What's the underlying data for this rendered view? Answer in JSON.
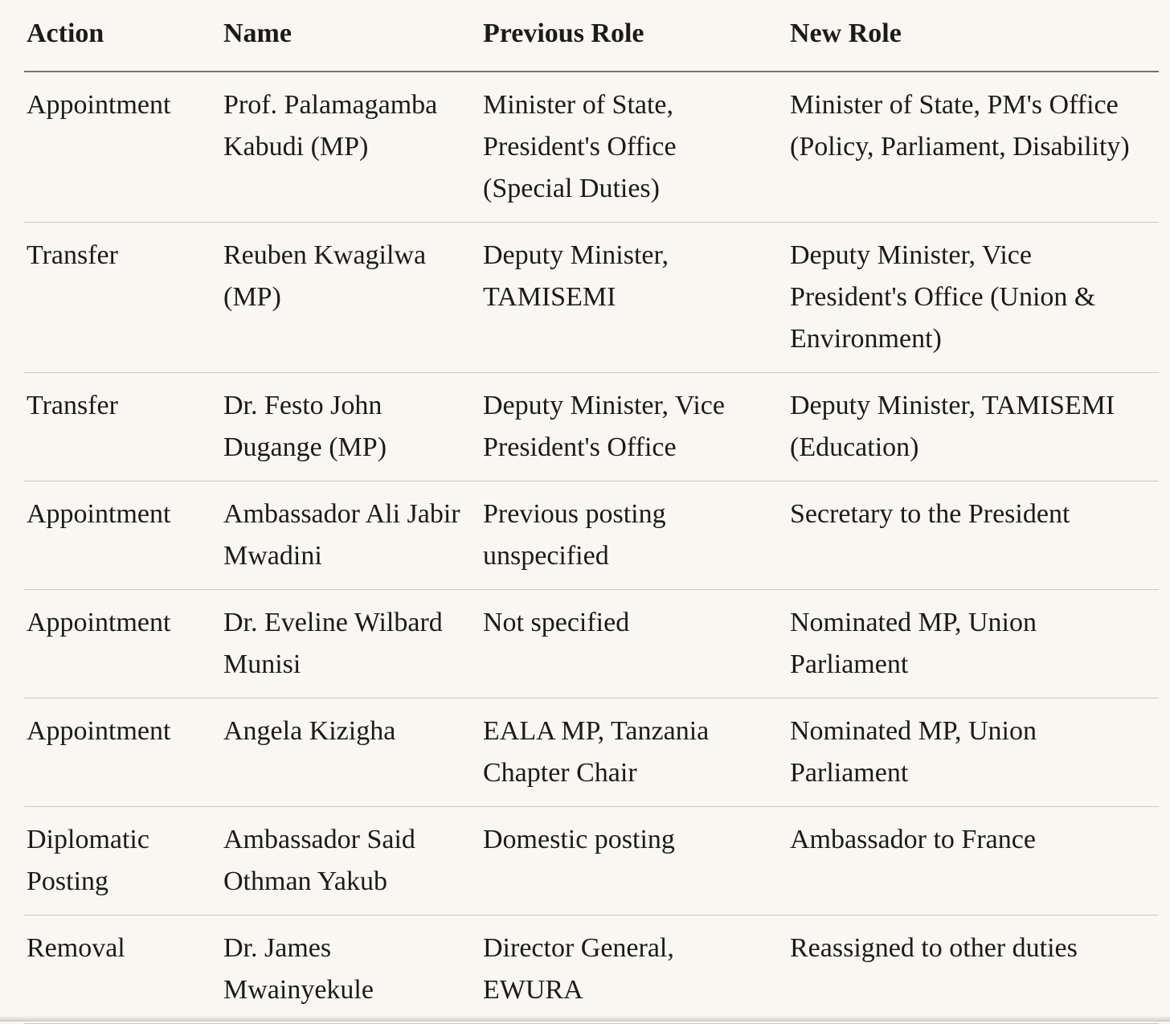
{
  "colors": {
    "background": "#f8f7f2",
    "text": "#1c1b19",
    "header_rule": "#75746c",
    "row_rule": "#c9c8c3"
  },
  "table": {
    "columns": [
      {
        "label": "Action"
      },
      {
        "label": "Name"
      },
      {
        "label": "Previous Role"
      },
      {
        "label": "New Role"
      }
    ],
    "rows": [
      {
        "action": "Appointment",
        "name": "Prof. Palamagamba Kabudi (MP)",
        "previous_role": "Minister of State, President's Office (Special Duties)",
        "new_role": "Minister of State, PM's Office (Policy, Parliament, Disability)"
      },
      {
        "action": "Transfer",
        "name": "Reuben Kwagilwa (MP)",
        "previous_role": "Deputy Minister, TAMISEMI",
        "new_role": "Deputy Minister, Vice President's Office (Union & Environment)"
      },
      {
        "action": "Transfer",
        "name": "Dr. Festo John Dugange (MP)",
        "previous_role": "Deputy Minister, Vice President's Office",
        "new_role": "Deputy Minister, TAMISEMI (Education)"
      },
      {
        "action": "Appointment",
        "name": "Ambassador Ali Jabir Mwadini",
        "previous_role": "Previous posting unspecified",
        "new_role": "Secretary to the President"
      },
      {
        "action": "Appointment",
        "name": "Dr. Eveline Wilbard Munisi",
        "previous_role": "Not specified",
        "new_role": "Nominated MP, Union Parliament"
      },
      {
        "action": "Appointment",
        "name": "Angela Kizigha",
        "previous_role": "EALA MP, Tanzania Chapter Chair",
        "new_role": "Nominated MP, Union Parliament"
      },
      {
        "action": "Diplomatic Posting",
        "name": "Ambassador Said Othman Yakub",
        "previous_role": "Domestic posting",
        "new_role": "Ambassador to France"
      },
      {
        "action": "Removal",
        "name": "Dr. James Mwainyekule",
        "previous_role": "Director General, EWURA",
        "new_role": "Reassigned to other duties"
      }
    ]
  }
}
